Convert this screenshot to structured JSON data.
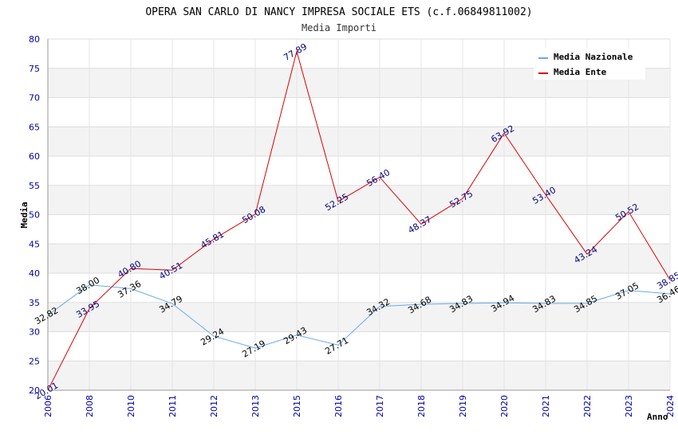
{
  "chart_data": {
    "type": "line",
    "title": "OPERA SAN CARLO DI NANCY IMPRESA SOCIALE ETS (c.f.06849811002)",
    "subtitle": "Media Importi",
    "xlabel": "Anno",
    "ylabel": "Media",
    "ylim": [
      20,
      80
    ],
    "yticks": [
      20,
      25,
      30,
      35,
      40,
      45,
      50,
      55,
      60,
      65,
      70,
      75,
      80
    ],
    "grid": true,
    "legend_position": "top-right",
    "categories": [
      "2006",
      "2008",
      "2010",
      "2011",
      "2012",
      "2013",
      "2015",
      "2016",
      "2017",
      "2018",
      "2019",
      "2020",
      "2021",
      "2022",
      "2023",
      "2024"
    ],
    "series": [
      {
        "name": "Media Nazionale",
        "color": "#66aaee",
        "values": [
          32.82,
          38.0,
          37.36,
          34.79,
          29.24,
          27.19,
          29.43,
          27.71,
          34.32,
          34.68,
          34.83,
          34.94,
          34.83,
          34.85,
          37.05,
          36.46
        ],
        "labels": [
          "32.82",
          "38.00",
          "37.36",
          "34.79",
          "29.24",
          "27.19",
          "29.43",
          "27.71",
          "34.32",
          "34.68",
          "34.83",
          "34.94",
          "34.83",
          "34.85",
          "37.05",
          "36.46"
        ]
      },
      {
        "name": "Media Ente",
        "color": "#dd0000",
        "values": [
          20.01,
          33.95,
          40.8,
          40.51,
          45.81,
          50.08,
          77.89,
          52.25,
          56.4,
          48.37,
          52.75,
          63.92,
          53.4,
          43.24,
          50.52,
          38.85
        ],
        "labels": [
          "20.01",
          "33.95",
          "40.80",
          "40.51",
          "45.81",
          "50.08",
          "77.89",
          "52.25",
          "56.40",
          "48.37",
          "52.75",
          "63.92",
          "53.40",
          "43.24",
          "50.52",
          "38.85"
        ]
      }
    ]
  }
}
